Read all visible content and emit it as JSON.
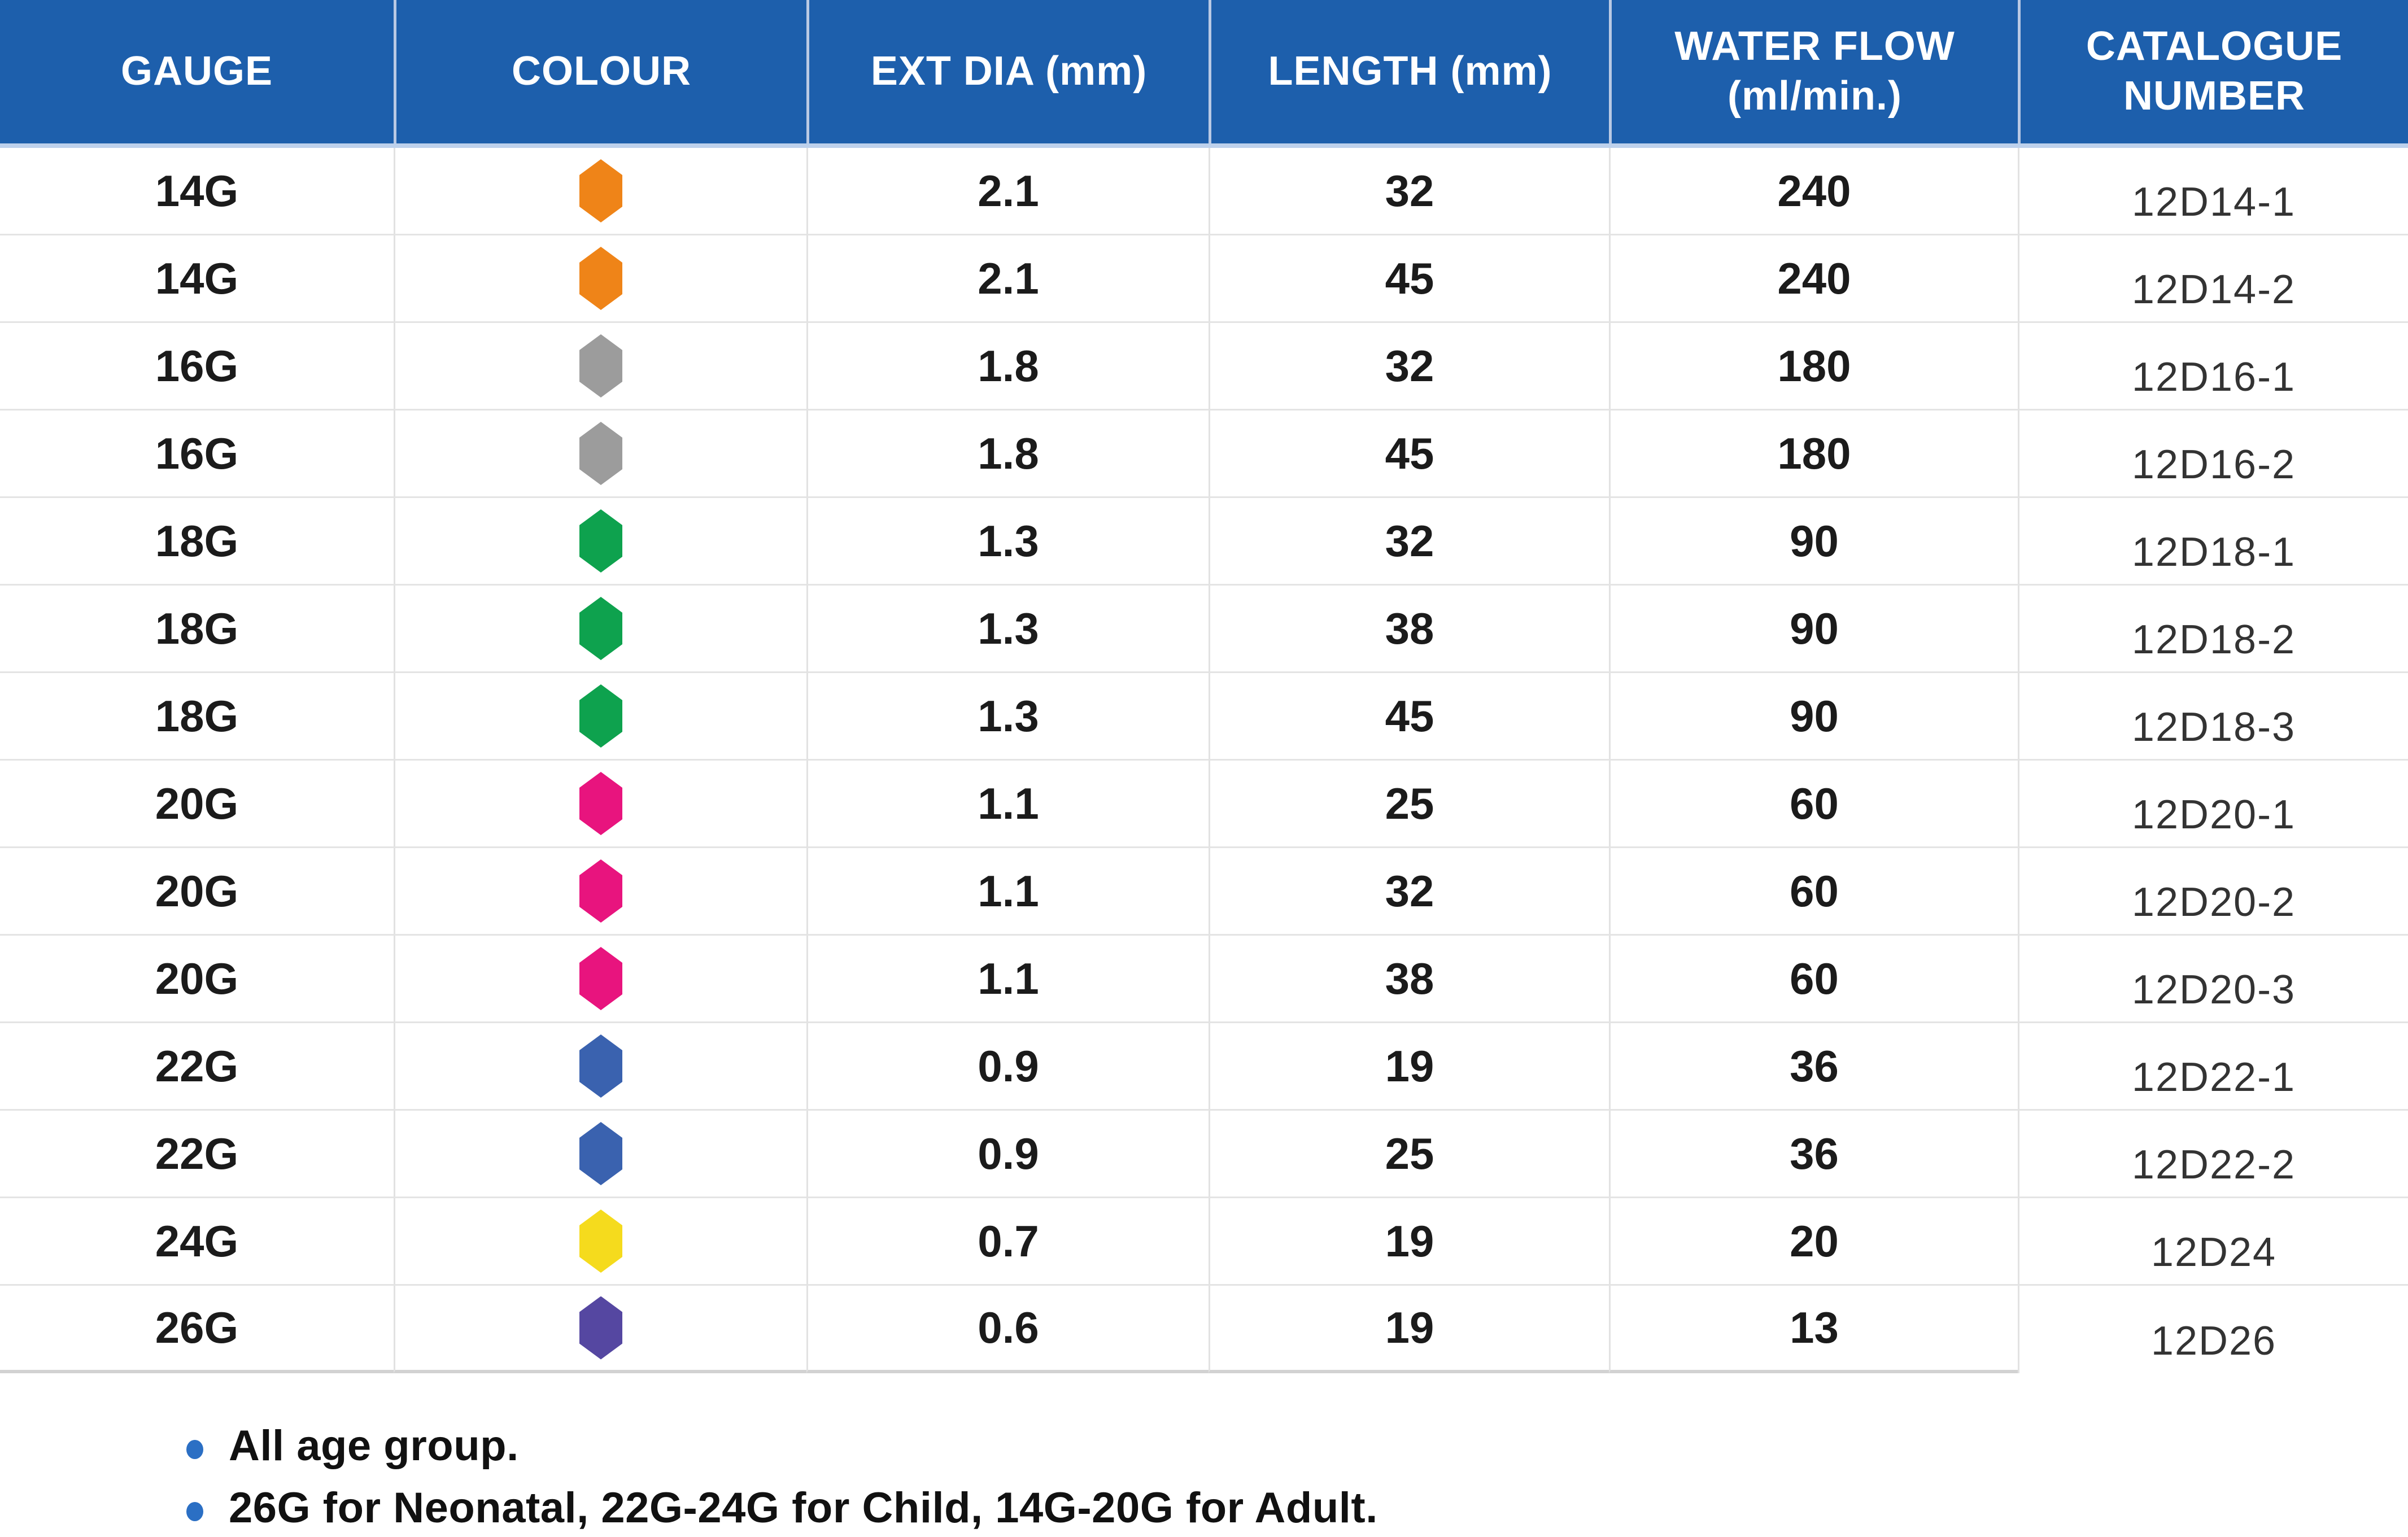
{
  "table": {
    "columns": [
      {
        "label": "GAUGE"
      },
      {
        "label": "COLOUR"
      },
      {
        "label": "EXT DIA (mm)"
      },
      {
        "label": "LENGTH (mm)"
      },
      {
        "label": "WATER FLOW (ml/min.)"
      },
      {
        "label": "CATALOGUE NUMBER"
      }
    ],
    "rows": [
      {
        "gauge": "14G",
        "color_name": "orange",
        "color_hex": "#EF8418",
        "ext_dia": "2.1",
        "length": "32",
        "water_flow": "240",
        "catalogue": "12D14-1"
      },
      {
        "gauge": "14G",
        "color_name": "orange",
        "color_hex": "#EF8418",
        "ext_dia": "2.1",
        "length": "45",
        "water_flow": "240",
        "catalogue": "12D14-2"
      },
      {
        "gauge": "16G",
        "color_name": "grey",
        "color_hex": "#9C9C9C",
        "ext_dia": "1.8",
        "length": "32",
        "water_flow": "180",
        "catalogue": "12D16-1"
      },
      {
        "gauge": "16G",
        "color_name": "grey",
        "color_hex": "#9C9C9C",
        "ext_dia": "1.8",
        "length": "45",
        "water_flow": "180",
        "catalogue": "12D16-2"
      },
      {
        "gauge": "18G",
        "color_name": "green",
        "color_hex": "#0EA24E",
        "ext_dia": "1.3",
        "length": "32",
        "water_flow": "90",
        "catalogue": "12D18-1"
      },
      {
        "gauge": "18G",
        "color_name": "green",
        "color_hex": "#0EA24E",
        "ext_dia": "1.3",
        "length": "38",
        "water_flow": "90",
        "catalogue": "12D18-2"
      },
      {
        "gauge": "18G",
        "color_name": "green",
        "color_hex": "#0EA24E",
        "ext_dia": "1.3",
        "length": "45",
        "water_flow": "90",
        "catalogue": "12D18-3"
      },
      {
        "gauge": "20G",
        "color_name": "pink",
        "color_hex": "#E8147E",
        "ext_dia": "1.1",
        "length": "25",
        "water_flow": "60",
        "catalogue": "12D20-1"
      },
      {
        "gauge": "20G",
        "color_name": "pink",
        "color_hex": "#E8147E",
        "ext_dia": "1.1",
        "length": "32",
        "water_flow": "60",
        "catalogue": "12D20-2"
      },
      {
        "gauge": "20G",
        "color_name": "pink",
        "color_hex": "#E8147E",
        "ext_dia": "1.1",
        "length": "38",
        "water_flow": "60",
        "catalogue": "12D20-3"
      },
      {
        "gauge": "22G",
        "color_name": "blue",
        "color_hex": "#3A62AF",
        "ext_dia": "0.9",
        "length": "19",
        "water_flow": "36",
        "catalogue": "12D22-1"
      },
      {
        "gauge": "22G",
        "color_name": "blue",
        "color_hex": "#3A62AF",
        "ext_dia": "0.9",
        "length": "25",
        "water_flow": "36",
        "catalogue": "12D22-2"
      },
      {
        "gauge": "24G",
        "color_name": "yellow",
        "color_hex": "#F5DB1D",
        "ext_dia": "0.7",
        "length": "19",
        "water_flow": "20",
        "catalogue": "12D24"
      },
      {
        "gauge": "26G",
        "color_name": "purple",
        "color_hex": "#5547A1",
        "ext_dia": "0.6",
        "length": "19",
        "water_flow": "13",
        "catalogue": "12D26"
      }
    ]
  },
  "notes": {
    "items": [
      {
        "text": "All age group."
      },
      {
        "text": "26G for Neonatal, 22G-24G for Child, 14G-20G for Adult."
      }
    ],
    "bullet_color": "#2B6FC4"
  },
  "colors": {
    "header_bg": "#1D5FAC",
    "header_text": "#FFFFFF",
    "row_divider": "#E4E4E4"
  }
}
